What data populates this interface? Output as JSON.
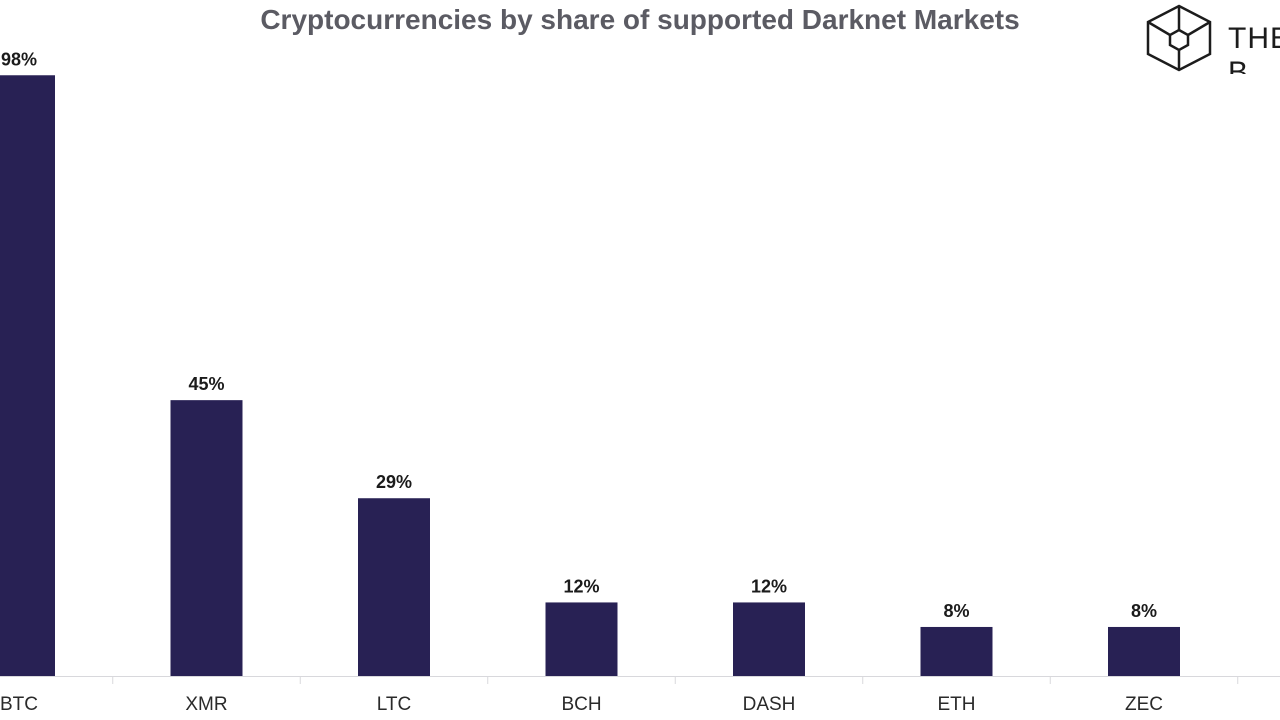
{
  "brand": {
    "text": "THE B",
    "icon": "cube-logo-icon"
  },
  "colors": {
    "bar": "#282154",
    "axis": "#d8d8dc",
    "title": "#5b5b63"
  },
  "chart_data": {
    "type": "bar",
    "title": "Cryptocurrencies by share of supported Darknet Markets",
    "xlabel": "",
    "ylabel": "",
    "ylim": [
      0,
      100
    ],
    "unit": "%",
    "grid": false,
    "legend": "none",
    "categories": [
      "BTC",
      "XMR",
      "LTC",
      "BCH",
      "DASH",
      "ETH",
      "ZEC"
    ],
    "values": [
      98,
      45,
      29,
      12,
      12,
      8,
      8
    ],
    "data_labels": [
      "98%",
      "45%",
      "29%",
      "12%",
      "12%",
      "8%",
      "8%"
    ]
  }
}
